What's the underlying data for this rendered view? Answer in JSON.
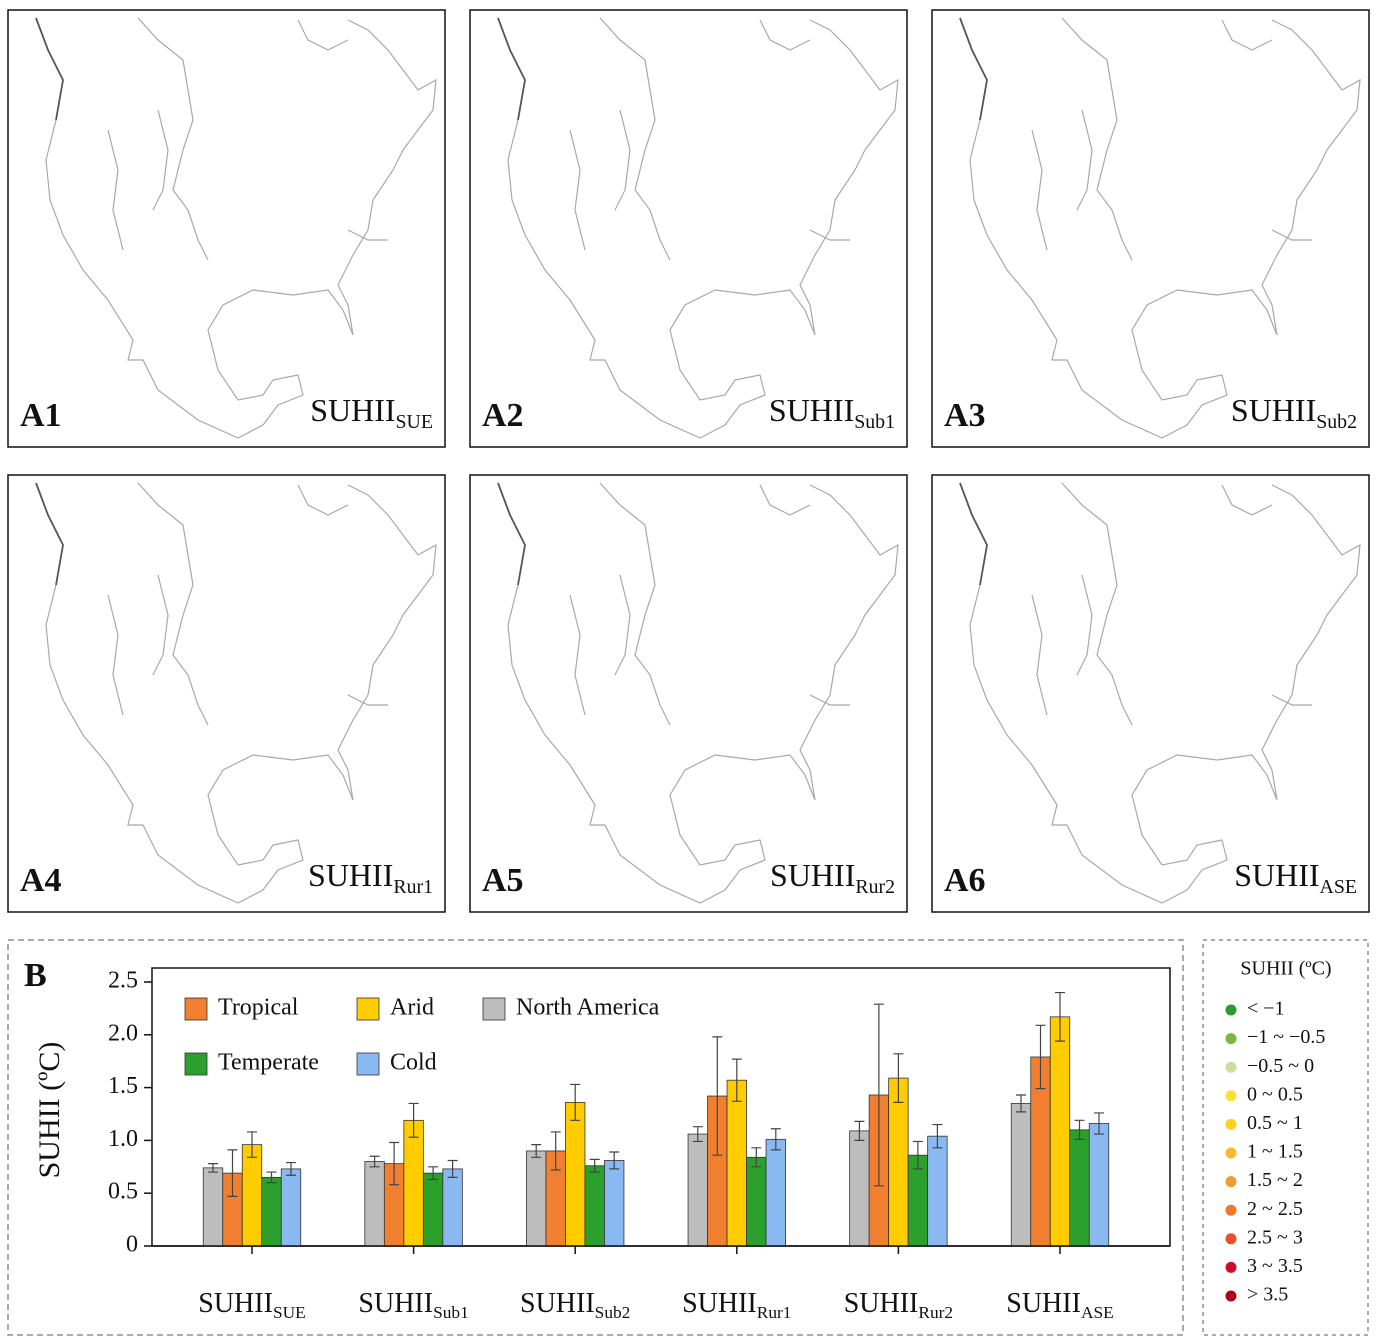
{
  "maps": [
    {
      "label": "A1",
      "title": "SUHII",
      "subscript": "SUE"
    },
    {
      "label": "A2",
      "title": "SUHII",
      "subscript": "Sub1"
    },
    {
      "label": "A3",
      "title": "SUHII",
      "subscript": "Sub2"
    },
    {
      "label": "A4",
      "title": "SUHII",
      "subscript": "Rur1"
    },
    {
      "label": "A5",
      "title": "SUHII",
      "subscript": "Rur2"
    },
    {
      "label": "A6",
      "title": "SUHII",
      "subscript": "ASE"
    }
  ],
  "chart_data": {
    "type": "bar",
    "panel_label": "B",
    "y_label": "SUHII (ºC)",
    "categories": [
      "SUHII",
      "SUHII",
      "SUHII",
      "SUHII",
      "SUHII",
      "SUHII"
    ],
    "category_subscripts": [
      "SUE",
      "Sub1",
      "Sub2",
      "Rur1",
      "Rur2",
      "ASE"
    ],
    "ylim": [
      0,
      2.5
    ],
    "yticks": [
      0,
      0.5,
      {
        "value": 1,
        "label": "1.0"
      },
      1.5,
      {
        "value": 2,
        "label": "2.0"
      },
      2.5
    ],
    "series": [
      {
        "name": "North America",
        "color": "#bdbdbd",
        "values": [
          0.74,
          0.8,
          0.9,
          1.06,
          1.09,
          1.35
        ],
        "errors": [
          0.04,
          0.05,
          0.06,
          0.07,
          0.09,
          0.08
        ]
      },
      {
        "name": "Tropical",
        "color": "#f08030",
        "values": [
          0.69,
          0.78,
          0.9,
          1.42,
          1.43,
          1.79
        ],
        "errors": [
          0.22,
          0.2,
          0.18,
          0.56,
          0.86,
          0.3
        ]
      },
      {
        "name": "Arid",
        "color": "#ffcc00",
        "values": [
          0.96,
          1.19,
          1.36,
          1.57,
          1.59,
          2.17
        ],
        "errors": [
          0.12,
          0.16,
          0.17,
          0.2,
          0.23,
          0.23
        ]
      },
      {
        "name": "Temperate",
        "color": "#2ca02c",
        "values": [
          0.65,
          0.69,
          0.76,
          0.84,
          0.86,
          1.1
        ],
        "errors": [
          0.05,
          0.06,
          0.06,
          0.09,
          0.13,
          0.09
        ]
      },
      {
        "name": "Cold",
        "color": "#8ab8f0",
        "values": [
          0.73,
          0.73,
          0.81,
          1.01,
          1.04,
          1.16
        ],
        "errors": [
          0.06,
          0.08,
          0.08,
          0.1,
          0.11,
          0.1
        ]
      }
    ]
  },
  "legend": {
    "title": "SUHII (ºC)",
    "items": [
      {
        "label": "< −1",
        "color": "#2e9a2e"
      },
      {
        "label": "−1 ~ −0.5",
        "color": "#7ab83a"
      },
      {
        "label": "−0.5 ~ 0",
        "color": "#c8e09a"
      },
      {
        "label": "0 ~ 0.5",
        "color": "#ffe033"
      },
      {
        "label": "0.5 ~ 1",
        "color": "#fcd21e"
      },
      {
        "label": "1 ~ 1.5",
        "color": "#f8b828"
      },
      {
        "label": "1.5 ~ 2",
        "color": "#f29a2e"
      },
      {
        "label": "2 ~ 2.5",
        "color": "#ec7a2a"
      },
      {
        "label": "2.5 ~ 3",
        "color": "#e8502a"
      },
      {
        "label": "3 ~ 3.5",
        "color": "#c8102a"
      },
      {
        "label": "> 3.5",
        "color": "#b0001a"
      }
    ]
  }
}
